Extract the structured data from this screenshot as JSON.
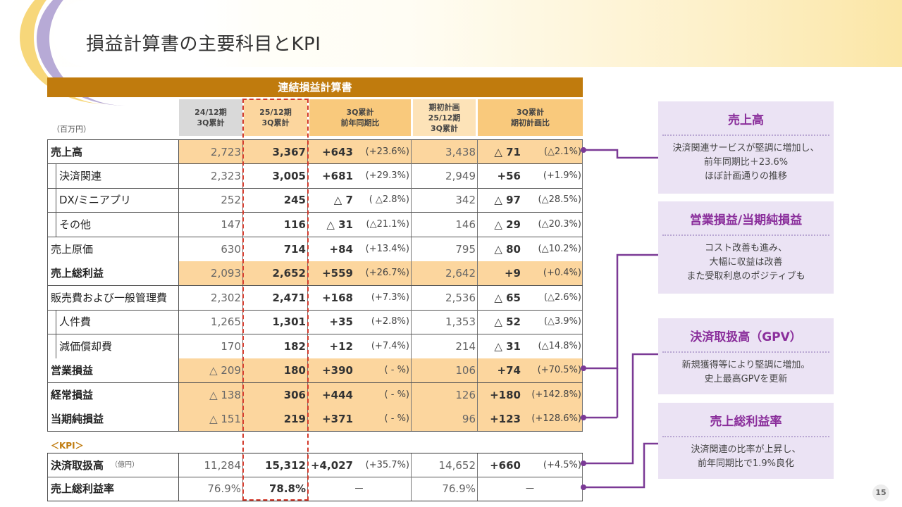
{
  "page": {
    "title": "損益計算書の主要科目とKPI",
    "page_number": "15"
  },
  "table": {
    "title": "連結損益計算書",
    "unit": "（百万円）",
    "col_headers": [
      {
        "lines": [
          "24/12期",
          "3Q累計"
        ]
      },
      {
        "lines": [
          "25/12期",
          "3Q累計"
        ]
      },
      {
        "lines": [
          "3Q累計",
          "前年同期比"
        ]
      },
      {
        "lines": [
          "期初計画",
          "25/12期",
          "3Q累計"
        ]
      },
      {
        "lines": [
          "3Q累計",
          "期初計画比"
        ]
      }
    ],
    "rows": [
      {
        "label": "売上高",
        "prev": "2,723",
        "curr": "3,367",
        "yoy": "+643",
        "yoy_pct": "(+23.6%)",
        "plan": "3,438",
        "vs_plan": "△ 71",
        "vs_plan_pct": "(△2.1%)"
      },
      {
        "label": "決済関連",
        "prev": "2,323",
        "curr": "3,005",
        "yoy": "+681",
        "yoy_pct": "(+29.3%)",
        "plan": "2,949",
        "vs_plan": "+56",
        "vs_plan_pct": "(+1.9%)"
      },
      {
        "label": "DX/ミニアプリ",
        "prev": "252",
        "curr": "245",
        "yoy": "△ 7",
        "yoy_pct": "( △2.8%)",
        "plan": "342",
        "vs_plan": "△ 97",
        "vs_plan_pct": "(△28.5%)"
      },
      {
        "label": "その他",
        "prev": "147",
        "curr": "116",
        "yoy": "△ 31",
        "yoy_pct": "(△21.1%)",
        "plan": "146",
        "vs_plan": "△ 29",
        "vs_plan_pct": "(△20.3%)"
      },
      {
        "label": "売上原価",
        "prev": "630",
        "curr": "714",
        "yoy": "+84",
        "yoy_pct": "(+13.4%)",
        "plan": "795",
        "vs_plan": "△ 80",
        "vs_plan_pct": "(△10.2%)"
      },
      {
        "label": "売上総利益",
        "prev": "2,093",
        "curr": "2,652",
        "yoy": "+559",
        "yoy_pct": "(+26.7%)",
        "plan": "2,642",
        "vs_plan": "+9",
        "vs_plan_pct": "(+0.4%)"
      },
      {
        "label": "販売費および一般管理費",
        "prev": "2,302",
        "curr": "2,471",
        "yoy": "+168",
        "yoy_pct": "(+7.3%)",
        "plan": "2,536",
        "vs_plan": "△ 65",
        "vs_plan_pct": "(△2.6%)"
      },
      {
        "label": "人件費",
        "prev": "1,265",
        "curr": "1,301",
        "yoy": "+35",
        "yoy_pct": "(+2.8%)",
        "plan": "1,353",
        "vs_plan": "△ 52",
        "vs_plan_pct": "(△3.9%)"
      },
      {
        "label": "減価償却費",
        "prev": "170",
        "curr": "182",
        "yoy": "+12",
        "yoy_pct": "(+7.4%)",
        "plan": "214",
        "vs_plan": "△ 31",
        "vs_plan_pct": "(△14.8%)"
      },
      {
        "label": "営業損益",
        "prev": "△ 209",
        "curr": "180",
        "yoy": "+390",
        "yoy_pct": "(  -  %)",
        "plan": "106",
        "vs_plan": "+74",
        "vs_plan_pct": "(+70.5%)"
      },
      {
        "label": "経常損益",
        "prev": "△ 138",
        "curr": "306",
        "yoy": "+444",
        "yoy_pct": "(  -  %)",
        "plan": "126",
        "vs_plan": "+180",
        "vs_plan_pct": "(+142.8%)"
      },
      {
        "label": "当期純損益",
        "prev": "△ 151",
        "curr": "219",
        "yoy": "+371",
        "yoy_pct": "(  -  %)",
        "plan": "96",
        "vs_plan": "+123",
        "vs_plan_pct": "(+128.6%)"
      }
    ],
    "kpi_label": "＜KPI＞",
    "kpi_rows": [
      {
        "label": "決済取扱高",
        "label_unit": "（億円）",
        "prev": "11,284",
        "curr": "15,312",
        "yoy": "+4,027",
        "yoy_pct": "(+35.7%)",
        "plan": "14,652",
        "vs_plan": "+660",
        "vs_plan_pct": "(+4.5%)"
      },
      {
        "label": "売上総利益率",
        "prev": "76.9%",
        "curr": "78.8%",
        "yoy_dash": "－",
        "plan": "76.9%",
        "vs_plan_dash": "－"
      }
    ]
  },
  "notes": [
    {
      "title": "売上高",
      "lines": [
        "決済関連サービスが堅調に増加し、",
        "前年同期比＋23.6%",
        "ほぼ計画通りの推移"
      ]
    },
    {
      "title": "営業損益/当期純損益",
      "lines": [
        "コスト改善も進み、",
        "大幅に収益は改善",
        "また受取利息のポジティブも"
      ]
    },
    {
      "title": "決済取扱高（GPV）",
      "lines": [
        "新規獲得等により堅調に増加。",
        "史上最高GPVを更新"
      ]
    },
    {
      "title": "売上総利益率",
      "lines": [
        "決済関連の比率が上昇し、",
        "前年同期比で1.9%良化"
      ]
    }
  ],
  "colors": {
    "table_title_bg": "#c07b0d",
    "highlight": "#fcd69e",
    "note_bg": "#ebe3f4",
    "note_title": "#8a2e9b",
    "connector": "#7b3a96",
    "dashed_box": "#d23a2c"
  }
}
